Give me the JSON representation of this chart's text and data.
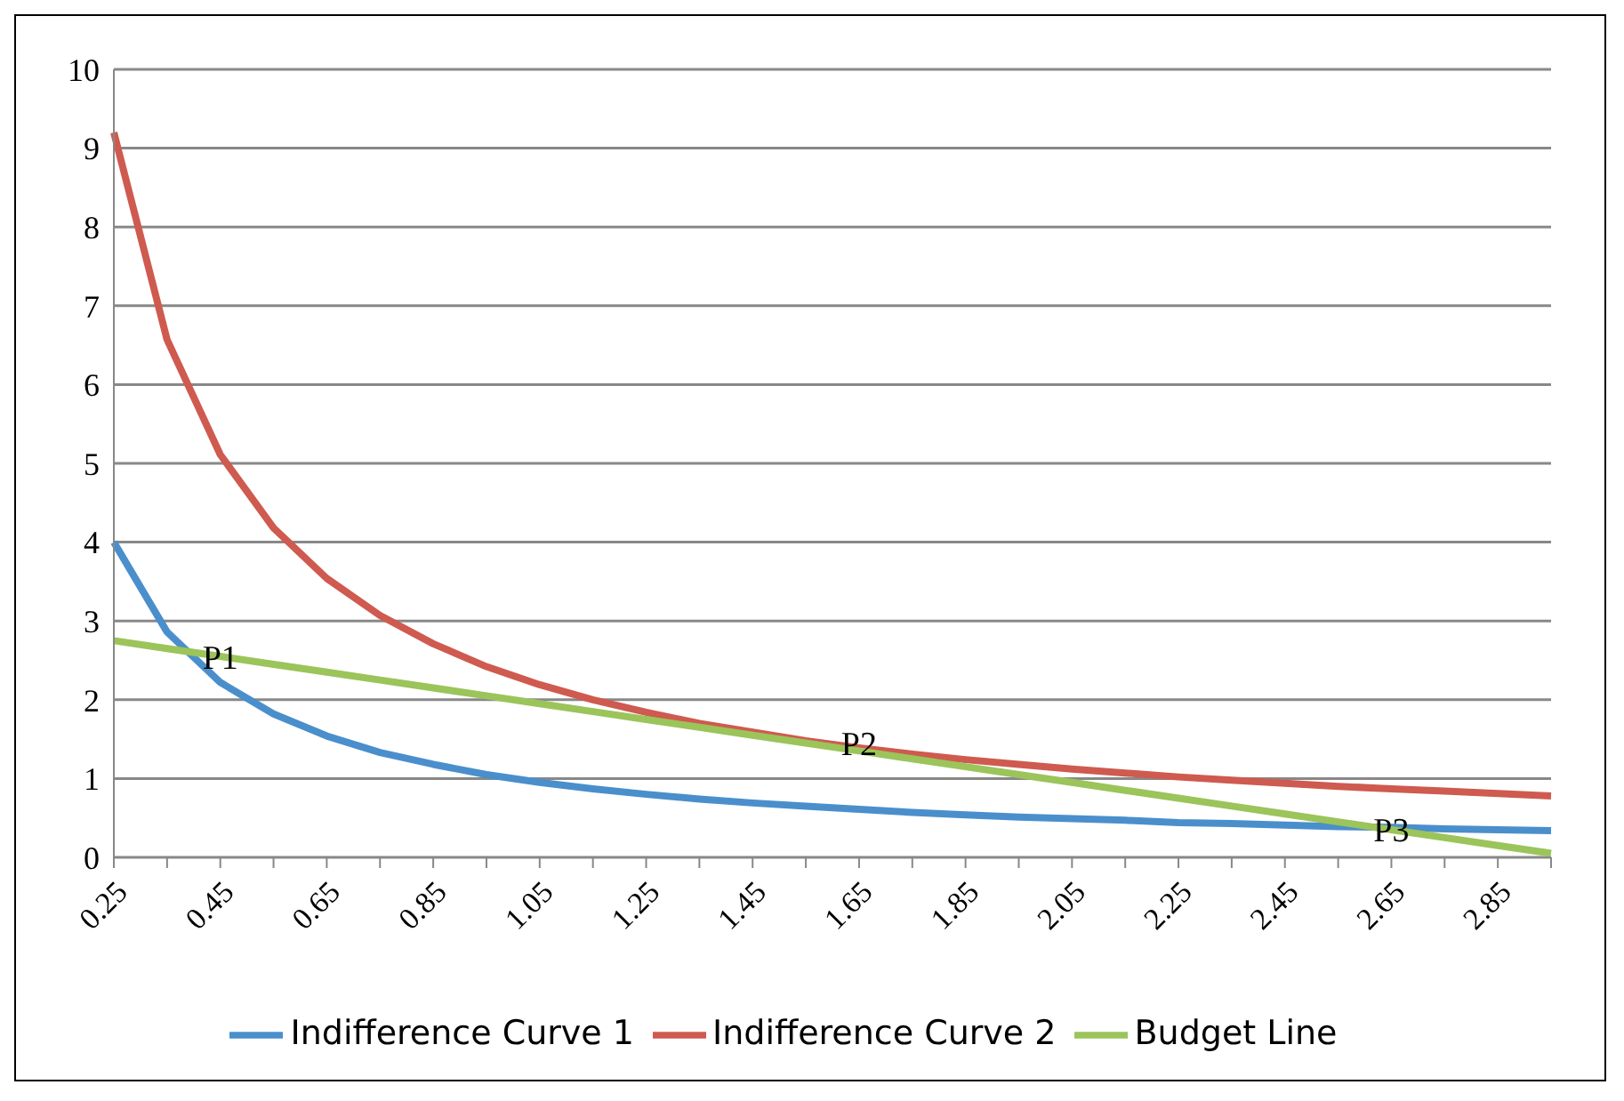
{
  "chart_data": {
    "type": "line",
    "categories": [
      "0.25",
      null,
      "0.45",
      null,
      "0.65",
      null,
      "0.85",
      null,
      "1.05",
      null,
      "1.25",
      null,
      "1.45",
      null,
      "1.65",
      null,
      "1.85",
      null,
      "2.05",
      null,
      "2.25",
      null,
      "2.45",
      null,
      "2.65",
      null,
      "2.85",
      null
    ],
    "series": [
      {
        "name": "Indifference Curve 1",
        "color": "#4a8fcc",
        "values": [
          4,
          2.86,
          2.22,
          1.82,
          1.54,
          1.33,
          1.18,
          1.05,
          0.95,
          0.87,
          0.8,
          0.74,
          0.69,
          0.65,
          0.61,
          0.57,
          0.54,
          0.51,
          0.49,
          0.47,
          0.44,
          0.43,
          0.41,
          0.39,
          0.38,
          0.36,
          0.35,
          0.34
        ]
      },
      {
        "name": "Indifference Curve 2",
        "color": "#cf5a4f",
        "values": [
          9.2,
          6.57,
          5.11,
          4.18,
          3.54,
          3.07,
          2.71,
          2.42,
          2.19,
          2.0,
          1.84,
          1.7,
          1.59,
          1.48,
          1.39,
          1.31,
          1.24,
          1.18,
          1.12,
          1.07,
          1.02,
          0.98,
          0.94,
          0.9,
          0.87,
          0.84,
          0.81,
          0.78
        ]
      },
      {
        "name": "Budget Line",
        "color": "#9bc45a",
        "values": [
          2.75,
          2.65,
          2.55,
          2.45,
          2.35,
          2.25,
          2.15,
          2.05,
          1.95,
          1.85,
          1.75,
          1.65,
          1.55,
          1.45,
          1.35,
          1.25,
          1.15,
          1.05,
          0.95,
          0.85,
          0.75,
          0.65,
          0.55,
          0.45,
          0.35,
          0.25,
          0.15,
          0.05
        ]
      }
    ],
    "ylim": [
      0,
      10
    ],
    "yticks": [
      0,
      1,
      2,
      3,
      4,
      5,
      6,
      7,
      8,
      9,
      10
    ],
    "grid": "y",
    "legend": "bottom",
    "marker": "none",
    "line_style": "solid",
    "annotations": [
      {
        "text": "P1",
        "x": "0.45",
        "y": 2.55
      },
      {
        "text": "P2",
        "x": "1.65",
        "y": 1.45
      },
      {
        "text": "P3",
        "x": "2.65",
        "y": 0.35
      }
    ]
  }
}
